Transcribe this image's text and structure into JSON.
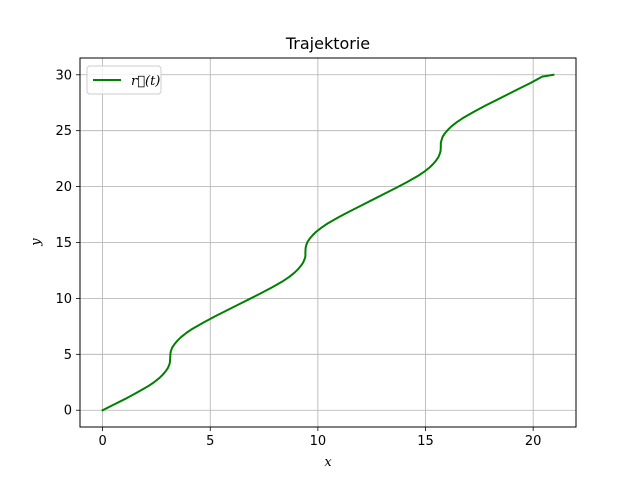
{
  "chart_data": {
    "type": "line",
    "title": "Trajektorie",
    "xlabel": "x",
    "ylabel": "y",
    "xlim": [
      -1.05,
      21.99
    ],
    "ylim": [
      -1.5,
      31.5
    ],
    "xticks": [
      0,
      5,
      10,
      15,
      20
    ],
    "yticks": [
      0,
      5,
      10,
      15,
      20,
      25,
      30
    ],
    "grid": true,
    "legend": {
      "position": "top-left"
    },
    "series": [
      {
        "name": "r⃗(t)",
        "color": "#008000",
        "points": [
          [
            0,
            0
          ],
          [
            0.53,
            0.51
          ],
          [
            1.06,
            1.02
          ],
          [
            1.58,
            1.56
          ],
          [
            2.11,
            2.14
          ],
          [
            2.38,
            2.49
          ],
          [
            2.64,
            2.89
          ],
          [
            2.8,
            3.19
          ],
          [
            2.94,
            3.51
          ],
          [
            3.04,
            3.8
          ],
          [
            3.11,
            4.14
          ],
          [
            3.13,
            4.35
          ],
          [
            3.14,
            4.71
          ],
          [
            3.15,
            5.07
          ],
          [
            3.17,
            5.28
          ],
          [
            3.24,
            5.63
          ],
          [
            3.34,
            5.91
          ],
          [
            3.48,
            6.23
          ],
          [
            3.64,
            6.53
          ],
          [
            3.9,
            6.93
          ],
          [
            4.17,
            7.28
          ],
          [
            4.7,
            7.86
          ],
          [
            5.23,
            8.4
          ],
          [
            5.75,
            8.91
          ],
          [
            6.28,
            9.42
          ],
          [
            6.81,
            9.93
          ],
          [
            7.33,
            10.44
          ],
          [
            7.86,
            10.98
          ],
          [
            8.39,
            11.56
          ],
          [
            8.66,
            11.91
          ],
          [
            8.92,
            12.31
          ],
          [
            9.08,
            12.61
          ],
          [
            9.22,
            12.94
          ],
          [
            9.32,
            13.22
          ],
          [
            9.39,
            13.56
          ],
          [
            9.42,
            13.77
          ],
          [
            9.42,
            14.14
          ],
          [
            9.43,
            14.49
          ],
          [
            9.45,
            14.71
          ],
          [
            9.52,
            15.06
          ],
          [
            9.62,
            15.34
          ],
          [
            9.76,
            15.66
          ],
          [
            9.92,
            15.96
          ],
          [
            10.18,
            16.35
          ],
          [
            10.45,
            16.7
          ],
          [
            10.98,
            17.28
          ],
          [
            11.51,
            17.82
          ],
          [
            12.04,
            18.33
          ],
          [
            12.57,
            18.85
          ],
          [
            13.09,
            19.36
          ],
          [
            13.62,
            19.87
          ],
          [
            14.15,
            20.41
          ],
          [
            14.67,
            20.98
          ],
          [
            14.94,
            21.33
          ],
          [
            15.2,
            21.73
          ],
          [
            15.36,
            22.03
          ],
          [
            15.5,
            22.36
          ],
          [
            15.6,
            22.64
          ],
          [
            15.67,
            22.98
          ],
          [
            15.7,
            23.19
          ],
          [
            15.71,
            23.56
          ],
          [
            15.71,
            23.91
          ],
          [
            15.74,
            24.13
          ],
          [
            15.8,
            24.48
          ],
          [
            15.9,
            24.76
          ],
          [
            16.04,
            25.08
          ],
          [
            16.2,
            25.38
          ],
          [
            16.46,
            25.77
          ],
          [
            16.73,
            26.12
          ],
          [
            17.26,
            26.7
          ],
          [
            17.79,
            27.25
          ],
          [
            18.32,
            27.76
          ],
          [
            18.84,
            28.27
          ],
          [
            19.37,
            28.78
          ],
          [
            19.9,
            29.29
          ],
          [
            20.42,
            29.83
          ],
          [
            20.94,
            30.0
          ]
        ]
      }
    ]
  }
}
